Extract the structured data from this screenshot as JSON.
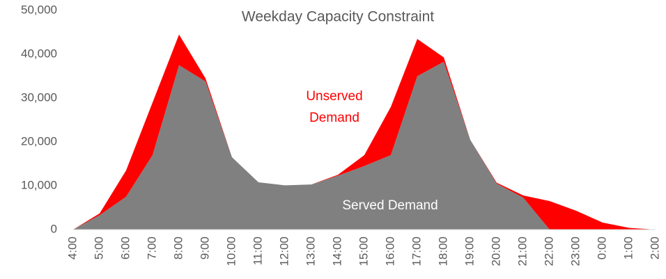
{
  "chart_data": {
    "type": "stacked_area",
    "title": "Weekday Capacity Constraint",
    "categories": [
      "4:00",
      "5:00",
      "6:00",
      "7:00",
      "8:00",
      "9:00",
      "10:00",
      "11:00",
      "12:00",
      "13:00",
      "14:00",
      "15:00",
      "16:00",
      "17:00",
      "18:00",
      "19:00",
      "20:00",
      "21:00",
      "22:00",
      "23:00",
      "0:00",
      "1:00",
      "2:00"
    ],
    "series": [
      {
        "name": "Served Demand",
        "color": "#808080",
        "values": [
          0,
          3300,
          7500,
          17000,
          37500,
          33800,
          16500,
          10800,
          10100,
          10300,
          12300,
          14500,
          17000,
          35000,
          38300,
          20500,
          10500,
          7300,
          0,
          0,
          0,
          0,
          0
        ]
      },
      {
        "name": "Unserved Demand",
        "color": "#ff0000",
        "values": [
          0,
          400,
          6000,
          12000,
          7000,
          700,
          0,
          0,
          0,
          0,
          200,
          2500,
          11000,
          8500,
          1000,
          0,
          200,
          500,
          6500,
          4300,
          1600,
          400,
          0
        ]
      }
    ],
    "ylim": [
      0,
      50000
    ],
    "yticks": [
      0,
      {
        "value": 10000,
        "label": "10,000"
      },
      {
        "value": 20000,
        "label": "20,000"
      },
      {
        "value": 30000,
        "label": "30,000"
      },
      {
        "value": 40000,
        "label": "40,000"
      },
      {
        "value": 50000,
        "label": "50,000"
      }
    ]
  }
}
